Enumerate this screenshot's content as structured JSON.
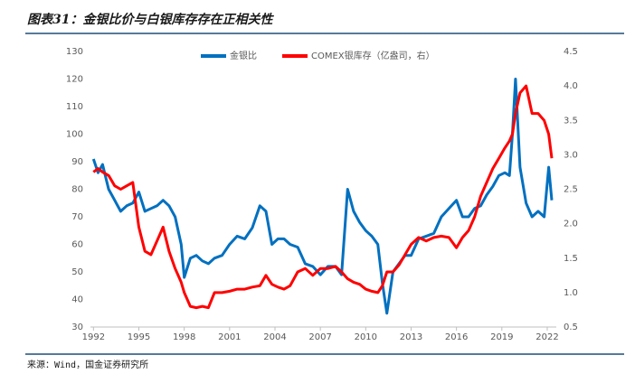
{
  "chart_data": {
    "type": "line",
    "title": "图表31：金银比价与白银库存存在正相关性",
    "source": "来源：Wind，国金证券研究所",
    "x": [
      1992.0,
      1992.3,
      1992.6,
      1993.0,
      1993.4,
      1993.8,
      1994.2,
      1994.6,
      1995.0,
      1995.4,
      1995.8,
      1996.2,
      1996.6,
      1997.0,
      1997.4,
      1997.8,
      1998.0,
      1998.4,
      1998.8,
      1999.2,
      1999.6,
      2000.0,
      2000.5,
      2001.0,
      2001.5,
      2002.0,
      2002.5,
      2003.0,
      2003.4,
      2003.8,
      2004.2,
      2004.6,
      2005.0,
      2005.5,
      2006.0,
      2006.5,
      2007.0,
      2007.5,
      2008.0,
      2008.4,
      2008.8,
      2009.2,
      2009.6,
      2010.0,
      2010.4,
      2010.8,
      2011.1,
      2011.4,
      2011.8,
      2012.2,
      2012.6,
      2013.0,
      2013.5,
      2014.0,
      2014.5,
      2015.0,
      2015.5,
      2016.0,
      2016.4,
      2016.8,
      2017.2,
      2017.6,
      2018.0,
      2018.4,
      2018.8,
      2019.2,
      2019.5,
      2019.7,
      2019.9,
      2020.2,
      2020.6,
      2021.0,
      2021.4,
      2021.8,
      2022.1,
      2022.3
    ],
    "xlim": [
      1991.8,
      2022.6
    ],
    "xticks": [
      1992,
      1995,
      1998,
      2001,
      2004,
      2007,
      2010,
      2013,
      2016,
      2019,
      2022
    ],
    "ylim": [
      30,
      130
    ],
    "yticks": [
      30,
      40,
      50,
      60,
      70,
      80,
      90,
      100,
      110,
      120,
      130
    ],
    "y2lim": [
      0.5,
      4.5
    ],
    "y2ticks": [
      0.5,
      {
        "value": 1.0,
        "label": "1.0"
      },
      1.5,
      {
        "value": 2.0,
        "label": "2.0"
      },
      2.5,
      {
        "value": 3.0,
        "label": "3.0"
      },
      3.5,
      {
        "value": 4.0,
        "label": "4.0"
      },
      4.5
    ],
    "series": [
      {
        "name": "金银比",
        "color": "#0070c0",
        "values": [
          91,
          86,
          89,
          80,
          76,
          72,
          74,
          75,
          79,
          72,
          73,
          74,
          76,
          74,
          70,
          60,
          48,
          55,
          56,
          54,
          53,
          55,
          56,
          60,
          63,
          62,
          66,
          74,
          72,
          60,
          62,
          62,
          60,
          59,
          53,
          52,
          49,
          52,
          52,
          49,
          80,
          72,
          68,
          65,
          63,
          60,
          46,
          35,
          50,
          53,
          56,
          56,
          62,
          63,
          64,
          70,
          73,
          76,
          70,
          70,
          73,
          74,
          78,
          81,
          85,
          86,
          85,
          100,
          120,
          88,
          75,
          70,
          72,
          70,
          88,
          76
        ]
      },
      {
        "name": "COMEX银库存（亿盎司，右）",
        "color": "#ff0000",
        "axis": "y2",
        "values": [
          2.75,
          2.8,
          2.75,
          2.7,
          2.55,
          2.5,
          2.55,
          2.6,
          1.95,
          1.6,
          1.55,
          1.75,
          1.95,
          1.6,
          1.35,
          1.15,
          1.0,
          0.8,
          0.78,
          0.8,
          0.78,
          1.0,
          1.0,
          1.02,
          1.05,
          1.05,
          1.08,
          1.1,
          1.25,
          1.12,
          1.08,
          1.05,
          1.1,
          1.3,
          1.35,
          1.25,
          1.35,
          1.35,
          1.38,
          1.3,
          1.2,
          1.15,
          1.12,
          1.05,
          1.02,
          1.0,
          1.1,
          1.3,
          1.3,
          1.4,
          1.55,
          1.7,
          1.8,
          1.75,
          1.8,
          1.82,
          1.8,
          1.65,
          1.8,
          1.9,
          2.1,
          2.4,
          2.6,
          2.8,
          2.95,
          3.1,
          3.2,
          3.3,
          3.6,
          3.9,
          4.0,
          3.6,
          3.6,
          3.5,
          3.3,
          2.95
        ]
      }
    ]
  }
}
